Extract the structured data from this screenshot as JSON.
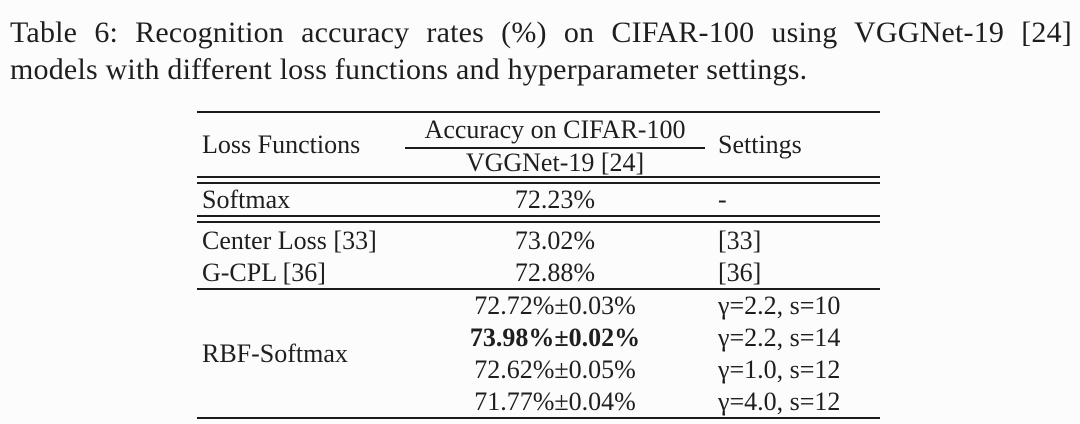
{
  "caption": {
    "lines": [
      "Table 6: Recognition accuracy rates (%) on CIFAR-100 using VGGNet-19 [24]",
      "models with different loss functions and hyperparameter settings."
    ]
  },
  "table": {
    "header": {
      "loss_functions": "Loss Functions",
      "accuracy_top": "Accuracy on CIFAR-100",
      "accuracy_bottom": "VGGNet-19 [24]",
      "settings": "Settings"
    },
    "rows": {
      "softmax": {
        "loss": "Softmax",
        "accuracy": "72.23%",
        "settings": "-"
      },
      "center_loss": {
        "loss": "Center Loss [33]",
        "accuracy": "73.02%",
        "settings": "[33]"
      },
      "gcpl": {
        "loss": "G-CPL [36]",
        "accuracy": "72.88%",
        "settings": "[36]"
      },
      "rbf": {
        "loss": "RBF-Softmax",
        "entries": [
          {
            "accuracy": "72.72%±0.03%",
            "settings": "γ=2.2, s=10",
            "bold": false
          },
          {
            "accuracy": "73.98%±0.02%",
            "settings": "γ=2.2, s=14",
            "bold": true
          },
          {
            "accuracy": "72.62%±0.05%",
            "settings": "γ=1.0, s=12",
            "bold": false
          },
          {
            "accuracy": "71.77%±0.04%",
            "settings": "γ=4.0, s=12",
            "bold": false
          }
        ]
      }
    }
  },
  "colors": {
    "background": "#fcfcfc",
    "text": "#1e1e1e",
    "rule": "#1b1b1b"
  }
}
